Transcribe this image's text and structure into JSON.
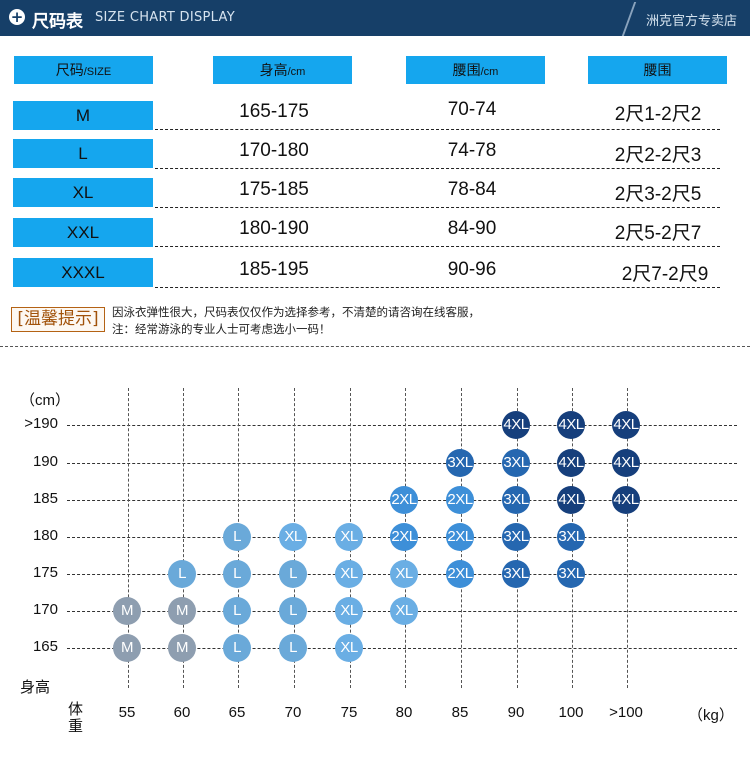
{
  "header": {
    "title": "尺码表",
    "subtitle": "SIZE CHART DISPLAY",
    "store": "洲克官方专卖店"
  },
  "table": {
    "headers": {
      "size": "尺码",
      "size_unit": "/SIZE",
      "height": "身高",
      "height_unit": "/cm",
      "waist_cm": "腰围",
      "waist_cm_unit": "/cm",
      "waist_chi": "腰围"
    },
    "rows": [
      {
        "size": "M",
        "height": "165-175",
        "waist_cm": "70-74",
        "waist_chi": "2尺1-2尺2"
      },
      {
        "size": "L",
        "height": "170-180",
        "waist_cm": "74-78",
        "waist_chi": "2尺2-2尺3"
      },
      {
        "size": "XL",
        "height": "175-185",
        "waist_cm": "78-84",
        "waist_chi": "2尺3-2尺5"
      },
      {
        "size": "XXL",
        "height": "180-190",
        "waist_cm": "84-90",
        "waist_chi": "2尺5-2尺7"
      },
      {
        "size": "XXXL",
        "height": "185-195",
        "waist_cm": "90-96",
        "waist_chi": "2尺7-2尺9"
      }
    ]
  },
  "tip": {
    "label": "[温馨提示]",
    "line1": "因泳衣弹性很大，尺码表仅仅作为选择参考，不清楚的请咨询在线客服，",
    "line2": "注：经常游泳的专业人士可考虑选小一码！"
  },
  "grid": {
    "y_unit": "（cm）",
    "y_axis_label": "身高",
    "x_axis_label_1": "体",
    "x_axis_label_2": "重",
    "x_unit": "（kg）",
    "y_labels": [
      ">190",
      "190",
      "185",
      "180",
      "175",
      "170",
      "165"
    ],
    "x_labels": [
      "55",
      "60",
      "65",
      "70",
      "75",
      "80",
      "85",
      "90",
      "100",
      ">100"
    ],
    "colors": {
      "M": "#8e9eb0",
      "L": "#6aa9d9",
      "XL": "#6aaee4",
      "2XL": "#3d8fd8",
      "3XL": "#2567b0",
      "4XL": "#163f7c"
    },
    "markers": [
      {
        "x": "55",
        "y": "170",
        "size": "M"
      },
      {
        "x": "55",
        "y": "165",
        "size": "M"
      },
      {
        "x": "60",
        "y": "175",
        "size": "L"
      },
      {
        "x": "60",
        "y": "170",
        "size": "M"
      },
      {
        "x": "60",
        "y": "165",
        "size": "M"
      },
      {
        "x": "65",
        "y": "180",
        "size": "L"
      },
      {
        "x": "65",
        "y": "175",
        "size": "L"
      },
      {
        "x": "65",
        "y": "170",
        "size": "L"
      },
      {
        "x": "65",
        "y": "165",
        "size": "L"
      },
      {
        "x": "70",
        "y": "180",
        "size": "XL"
      },
      {
        "x": "70",
        "y": "175",
        "size": "L"
      },
      {
        "x": "70",
        "y": "170",
        "size": "L"
      },
      {
        "x": "70",
        "y": "165",
        "size": "L"
      },
      {
        "x": "75",
        "y": "180",
        "size": "XL"
      },
      {
        "x": "75",
        "y": "175",
        "size": "XL"
      },
      {
        "x": "75",
        "y": "170",
        "size": "XL"
      },
      {
        "x": "75",
        "y": "165",
        "size": "XL"
      },
      {
        "x": "80",
        "y": "185",
        "size": "2XL"
      },
      {
        "x": "80",
        "y": "180",
        "size": "2XL"
      },
      {
        "x": "80",
        "y": "175",
        "size": "XL"
      },
      {
        "x": "80",
        "y": "170",
        "size": "XL"
      },
      {
        "x": "85",
        "y": "190",
        "size": "3XL"
      },
      {
        "x": "85",
        "y": "185",
        "size": "2XL"
      },
      {
        "x": "85",
        "y": "180",
        "size": "2XL"
      },
      {
        "x": "85",
        "y": "175",
        "size": "2XL"
      },
      {
        "x": "90",
        "y": ">190",
        "size": "4XL"
      },
      {
        "x": "90",
        "y": "190",
        "size": "3XL"
      },
      {
        "x": "90",
        "y": "185",
        "size": "3XL"
      },
      {
        "x": "90",
        "y": "180",
        "size": "3XL"
      },
      {
        "x": "90",
        "y": "175",
        "size": "3XL"
      },
      {
        "x": "100",
        "y": ">190",
        "size": "4XL"
      },
      {
        "x": "100",
        "y": "190",
        "size": "4XL"
      },
      {
        "x": "100",
        "y": "185",
        "size": "4XL"
      },
      {
        "x": "100",
        "y": "180",
        "size": "3XL"
      },
      {
        "x": "100",
        "y": "175",
        "size": "3XL"
      },
      {
        "x": ">100",
        "y": ">190",
        "size": "4XL"
      },
      {
        "x": ">100",
        "y": "190",
        "size": "4XL"
      },
      {
        "x": ">100",
        "y": "185",
        "size": "4XL"
      }
    ]
  }
}
